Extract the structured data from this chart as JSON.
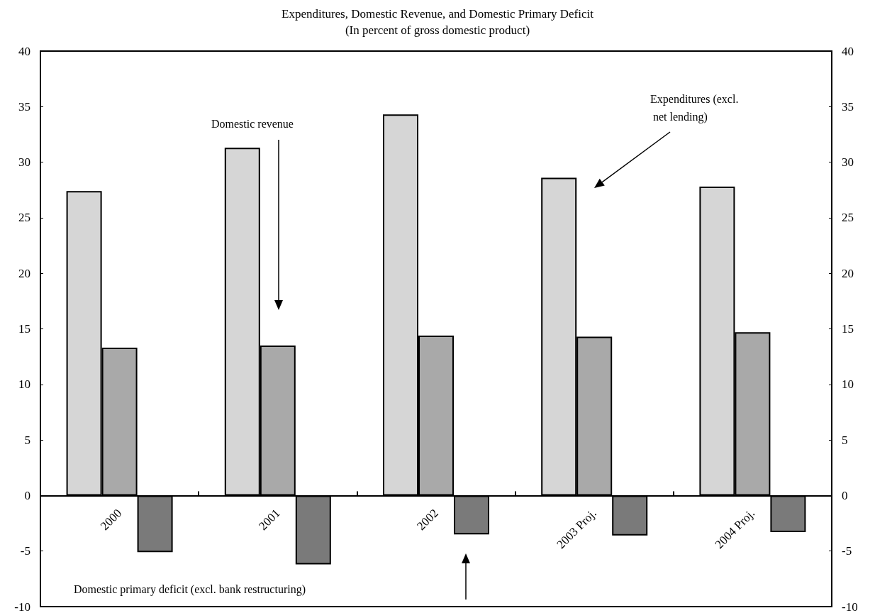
{
  "chart_data": {
    "type": "bar",
    "title": "Expenditures, Domestic Revenue, and Domestic Primary Deficit",
    "subtitle": "(In percent of gross domestic product)",
    "categories": [
      "2000",
      "2001",
      "2002",
      "2003 Proj.",
      "2004 Proj."
    ],
    "series": [
      {
        "color": "#d6d6d6",
        "values": [
          27.4,
          31.3,
          34.3,
          28.6,
          27.8
        ]
      },
      {
        "color": "#a9a9a9",
        "values": [
          13.3,
          13.5,
          14.4,
          14.3,
          14.7
        ]
      },
      {
        "color": "#7a7a7a",
        "values": [
          -5.1,
          -6.2,
          -3.5,
          -3.6,
          -3.3
        ]
      }
    ],
    "annotations": [
      "Domestic revenue",
      "Expenditures (excl. net lending)",
      "Domestic primary deficit (excl. bank restructuring)"
    ],
    "ylim": [
      -10,
      40
    ],
    "yticks": [
      -10,
      -5,
      0,
      5,
      10,
      15,
      20,
      25,
      30,
      35,
      40
    ],
    "y2lim": [
      -10,
      40
    ],
    "y2ticks": [
      -10,
      -5,
      0,
      5,
      10,
      15,
      20,
      25,
      30,
      35,
      40
    ],
    "tick_labels": "xy"
  }
}
